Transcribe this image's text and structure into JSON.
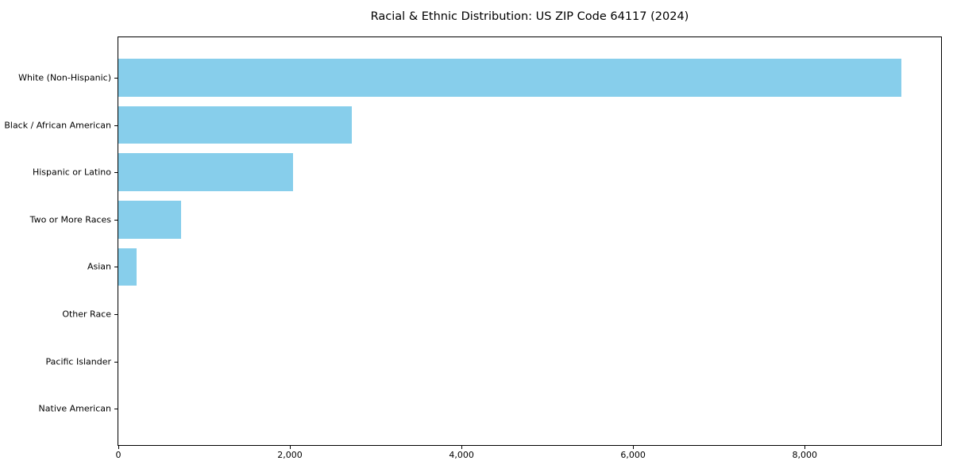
{
  "chart_data": {
    "type": "bar",
    "orientation": "horizontal",
    "title": "Racial & Ethnic Distribution: US ZIP Code 64117 (2024)",
    "categories": [
      "White (Non-Hispanic)",
      "Black / African American",
      "Hispanic or Latino",
      "Two or More Races",
      "Asian",
      "Other Race",
      "Pacific Islander",
      "Native American"
    ],
    "values": [
      9130,
      2725,
      2040,
      730,
      210,
      0,
      0,
      0
    ],
    "xlabel": "",
    "ylabel": "",
    "xlim": [
      0,
      9590
    ],
    "xticks": [
      0,
      2000,
      4000,
      6000,
      8000
    ],
    "xtick_labels": [
      "0",
      "2,000",
      "4,000",
      "6,000",
      "8,000"
    ],
    "bar_color": "#87CEEB",
    "background_color": "#ffffff",
    "text_color": "#000000",
    "grid": false,
    "legend": "none"
  }
}
